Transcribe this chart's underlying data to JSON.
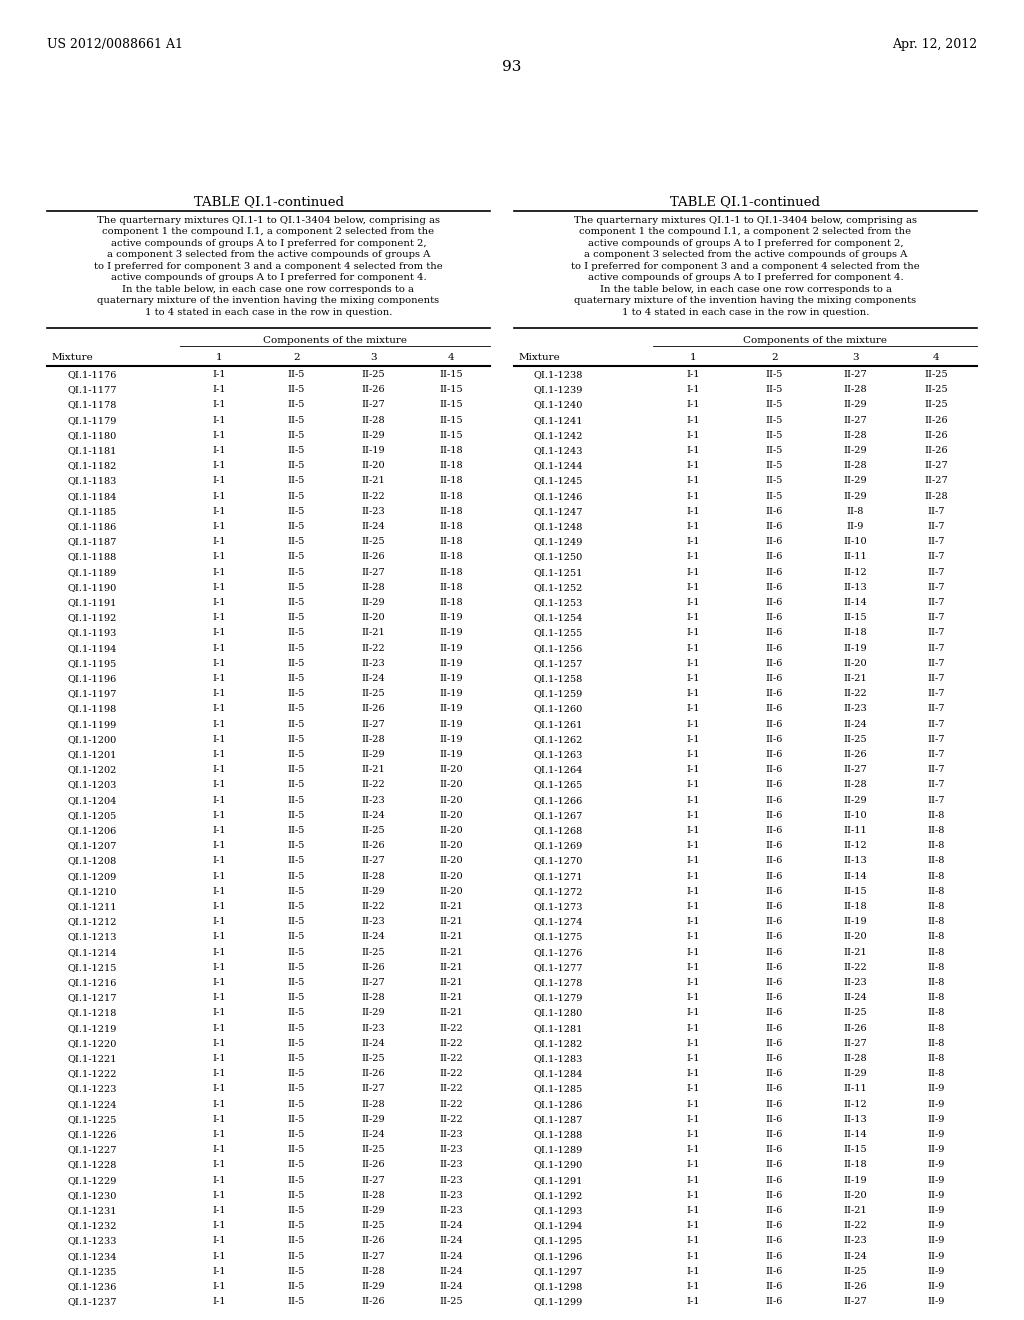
{
  "page_header_left": "US 2012/0088661 A1",
  "page_header_right": "Apr. 12, 2012",
  "page_number": "93",
  "table_title": "TABLE QI.1-continued",
  "table_description": "The quarternary mixtures QI.1-1 to QI.1-3404 below, comprising as\ncomponent 1 the compound I.1, a component 2 selected from the\nactive compounds of groups A to I preferred for component 2,\na component 3 selected from the active compounds of groups A\nto I preferred for component 3 and a component 4 selected from the\nactive compounds of groups A to I preferred for component 4.\nIn the table below, in each case one row corresponds to a\nquaternary mixture of the invention having the mixing components\n1 to 4 stated in each case in the row in question.",
  "col_header_span": "Components of the mixture",
  "col_headers": [
    "Mixture",
    "1",
    "2",
    "3",
    "4"
  ],
  "left_data": [
    [
      "QI.1-1176",
      "I-1",
      "II-5",
      "II-25",
      "II-15"
    ],
    [
      "QI.1-1177",
      "I-1",
      "II-5",
      "II-26",
      "II-15"
    ],
    [
      "QI.1-1178",
      "I-1",
      "II-5",
      "II-27",
      "II-15"
    ],
    [
      "QI.1-1179",
      "I-1",
      "II-5",
      "II-28",
      "II-15"
    ],
    [
      "QI.1-1180",
      "I-1",
      "II-5",
      "II-29",
      "II-15"
    ],
    [
      "QI.1-1181",
      "I-1",
      "II-5",
      "II-19",
      "II-18"
    ],
    [
      "QI.1-1182",
      "I-1",
      "II-5",
      "II-20",
      "II-18"
    ],
    [
      "QI.1-1183",
      "I-1",
      "II-5",
      "II-21",
      "II-18"
    ],
    [
      "QI.1-1184",
      "I-1",
      "II-5",
      "II-22",
      "II-18"
    ],
    [
      "QI.1-1185",
      "I-1",
      "II-5",
      "II-23",
      "II-18"
    ],
    [
      "QI.1-1186",
      "I-1",
      "II-5",
      "II-24",
      "II-18"
    ],
    [
      "QI.1-1187",
      "I-1",
      "II-5",
      "II-25",
      "II-18"
    ],
    [
      "QI.1-1188",
      "I-1",
      "II-5",
      "II-26",
      "II-18"
    ],
    [
      "QI.1-1189",
      "I-1",
      "II-5",
      "II-27",
      "II-18"
    ],
    [
      "QI.1-1190",
      "I-1",
      "II-5",
      "II-28",
      "II-18"
    ],
    [
      "QI.1-1191",
      "I-1",
      "II-5",
      "II-29",
      "II-18"
    ],
    [
      "QI.1-1192",
      "I-1",
      "II-5",
      "II-20",
      "II-19"
    ],
    [
      "QI.1-1193",
      "I-1",
      "II-5",
      "II-21",
      "II-19"
    ],
    [
      "QI.1-1194",
      "I-1",
      "II-5",
      "II-22",
      "II-19"
    ],
    [
      "QI.1-1195",
      "I-1",
      "II-5",
      "II-23",
      "II-19"
    ],
    [
      "QI.1-1196",
      "I-1",
      "II-5",
      "II-24",
      "II-19"
    ],
    [
      "QI.1-1197",
      "I-1",
      "II-5",
      "II-25",
      "II-19"
    ],
    [
      "QI.1-1198",
      "I-1",
      "II-5",
      "II-26",
      "II-19"
    ],
    [
      "QI.1-1199",
      "I-1",
      "II-5",
      "II-27",
      "II-19"
    ],
    [
      "QI.1-1200",
      "I-1",
      "II-5",
      "II-28",
      "II-19"
    ],
    [
      "QI.1-1201",
      "I-1",
      "II-5",
      "II-29",
      "II-19"
    ],
    [
      "QI.1-1202",
      "I-1",
      "II-5",
      "II-21",
      "II-20"
    ],
    [
      "QI.1-1203",
      "I-1",
      "II-5",
      "II-22",
      "II-20"
    ],
    [
      "QI.1-1204",
      "I-1",
      "II-5",
      "II-23",
      "II-20"
    ],
    [
      "QI.1-1205",
      "I-1",
      "II-5",
      "II-24",
      "II-20"
    ],
    [
      "QI.1-1206",
      "I-1",
      "II-5",
      "II-25",
      "II-20"
    ],
    [
      "QI.1-1207",
      "I-1",
      "II-5",
      "II-26",
      "II-20"
    ],
    [
      "QI.1-1208",
      "I-1",
      "II-5",
      "II-27",
      "II-20"
    ],
    [
      "QI.1-1209",
      "I-1",
      "II-5",
      "II-28",
      "II-20"
    ],
    [
      "QI.1-1210",
      "I-1",
      "II-5",
      "II-29",
      "II-20"
    ],
    [
      "QI.1-1211",
      "I-1",
      "II-5",
      "II-22",
      "II-21"
    ],
    [
      "QI.1-1212",
      "I-1",
      "II-5",
      "II-23",
      "II-21"
    ],
    [
      "QI.1-1213",
      "I-1",
      "II-5",
      "II-24",
      "II-21"
    ],
    [
      "QI.1-1214",
      "I-1",
      "II-5",
      "II-25",
      "II-21"
    ],
    [
      "QI.1-1215",
      "I-1",
      "II-5",
      "II-26",
      "II-21"
    ],
    [
      "QI.1-1216",
      "I-1",
      "II-5",
      "II-27",
      "II-21"
    ],
    [
      "QI.1-1217",
      "I-1",
      "II-5",
      "II-28",
      "II-21"
    ],
    [
      "QI.1-1218",
      "I-1",
      "II-5",
      "II-29",
      "II-21"
    ],
    [
      "QI.1-1219",
      "I-1",
      "II-5",
      "II-23",
      "II-22"
    ],
    [
      "QI.1-1220",
      "I-1",
      "II-5",
      "II-24",
      "II-22"
    ],
    [
      "QI.1-1221",
      "I-1",
      "II-5",
      "II-25",
      "II-22"
    ],
    [
      "QI.1-1222",
      "I-1",
      "II-5",
      "II-26",
      "II-22"
    ],
    [
      "QI.1-1223",
      "I-1",
      "II-5",
      "II-27",
      "II-22"
    ],
    [
      "QI.1-1224",
      "I-1",
      "II-5",
      "II-28",
      "II-22"
    ],
    [
      "QI.1-1225",
      "I-1",
      "II-5",
      "II-29",
      "II-22"
    ],
    [
      "QI.1-1226",
      "I-1",
      "II-5",
      "II-24",
      "II-23"
    ],
    [
      "QI.1-1227",
      "I-1",
      "II-5",
      "II-25",
      "II-23"
    ],
    [
      "QI.1-1228",
      "I-1",
      "II-5",
      "II-26",
      "II-23"
    ],
    [
      "QI.1-1229",
      "I-1",
      "II-5",
      "II-27",
      "II-23"
    ],
    [
      "QI.1-1230",
      "I-1",
      "II-5",
      "II-28",
      "II-23"
    ],
    [
      "QI.1-1231",
      "I-1",
      "II-5",
      "II-29",
      "II-23"
    ],
    [
      "QI.1-1232",
      "I-1",
      "II-5",
      "II-25",
      "II-24"
    ],
    [
      "QI.1-1233",
      "I-1",
      "II-5",
      "II-26",
      "II-24"
    ],
    [
      "QI.1-1234",
      "I-1",
      "II-5",
      "II-27",
      "II-24"
    ],
    [
      "QI.1-1235",
      "I-1",
      "II-5",
      "II-28",
      "II-24"
    ],
    [
      "QI.1-1236",
      "I-1",
      "II-5",
      "II-29",
      "II-24"
    ],
    [
      "QI.1-1237",
      "I-1",
      "II-5",
      "II-26",
      "II-25"
    ]
  ],
  "right_data": [
    [
      "QI.1-1238",
      "I-1",
      "II-5",
      "II-27",
      "II-25"
    ],
    [
      "QI.1-1239",
      "I-1",
      "II-5",
      "II-28",
      "II-25"
    ],
    [
      "QI.1-1240",
      "I-1",
      "II-5",
      "II-29",
      "II-25"
    ],
    [
      "QI.1-1241",
      "I-1",
      "II-5",
      "II-27",
      "II-26"
    ],
    [
      "QI.1-1242",
      "I-1",
      "II-5",
      "II-28",
      "II-26"
    ],
    [
      "QI.1-1243",
      "I-1",
      "II-5",
      "II-29",
      "II-26"
    ],
    [
      "QI.1-1244",
      "I-1",
      "II-5",
      "II-28",
      "II-27"
    ],
    [
      "QI.1-1245",
      "I-1",
      "II-5",
      "II-29",
      "II-27"
    ],
    [
      "QI.1-1246",
      "I-1",
      "II-5",
      "II-29",
      "II-28"
    ],
    [
      "QI.1-1247",
      "I-1",
      "II-6",
      "II-8",
      "II-7"
    ],
    [
      "QI.1-1248",
      "I-1",
      "II-6",
      "II-9",
      "II-7"
    ],
    [
      "QI.1-1249",
      "I-1",
      "II-6",
      "II-10",
      "II-7"
    ],
    [
      "QI.1-1250",
      "I-1",
      "II-6",
      "II-11",
      "II-7"
    ],
    [
      "QI.1-1251",
      "I-1",
      "II-6",
      "II-12",
      "II-7"
    ],
    [
      "QI.1-1252",
      "I-1",
      "II-6",
      "II-13",
      "II-7"
    ],
    [
      "QI.1-1253",
      "I-1",
      "II-6",
      "II-14",
      "II-7"
    ],
    [
      "QI.1-1254",
      "I-1",
      "II-6",
      "II-15",
      "II-7"
    ],
    [
      "QI.1-1255",
      "I-1",
      "II-6",
      "II-18",
      "II-7"
    ],
    [
      "QI.1-1256",
      "I-1",
      "II-6",
      "II-19",
      "II-7"
    ],
    [
      "QI.1-1257",
      "I-1",
      "II-6",
      "II-20",
      "II-7"
    ],
    [
      "QI.1-1258",
      "I-1",
      "II-6",
      "II-21",
      "II-7"
    ],
    [
      "QI.1-1259",
      "I-1",
      "II-6",
      "II-22",
      "II-7"
    ],
    [
      "QI.1-1260",
      "I-1",
      "II-6",
      "II-23",
      "II-7"
    ],
    [
      "QI.1-1261",
      "I-1",
      "II-6",
      "II-24",
      "II-7"
    ],
    [
      "QI.1-1262",
      "I-1",
      "II-6",
      "II-25",
      "II-7"
    ],
    [
      "QI.1-1263",
      "I-1",
      "II-6",
      "II-26",
      "II-7"
    ],
    [
      "QI.1-1264",
      "I-1",
      "II-6",
      "II-27",
      "II-7"
    ],
    [
      "QI.1-1265",
      "I-1",
      "II-6",
      "II-28",
      "II-7"
    ],
    [
      "QI.1-1266",
      "I-1",
      "II-6",
      "II-29",
      "II-7"
    ],
    [
      "QI.1-1267",
      "I-1",
      "II-6",
      "II-10",
      "II-8"
    ],
    [
      "QI.1-1268",
      "I-1",
      "II-6",
      "II-11",
      "II-8"
    ],
    [
      "QI.1-1269",
      "I-1",
      "II-6",
      "II-12",
      "II-8"
    ],
    [
      "QI.1-1270",
      "I-1",
      "II-6",
      "II-13",
      "II-8"
    ],
    [
      "QI.1-1271",
      "I-1",
      "II-6",
      "II-14",
      "II-8"
    ],
    [
      "QI.1-1272",
      "I-1",
      "II-6",
      "II-15",
      "II-8"
    ],
    [
      "QI.1-1273",
      "I-1",
      "II-6",
      "II-18",
      "II-8"
    ],
    [
      "QI.1-1274",
      "I-1",
      "II-6",
      "II-19",
      "II-8"
    ],
    [
      "QI.1-1275",
      "I-1",
      "II-6",
      "II-20",
      "II-8"
    ],
    [
      "QI.1-1276",
      "I-1",
      "II-6",
      "II-21",
      "II-8"
    ],
    [
      "QI.1-1277",
      "I-1",
      "II-6",
      "II-22",
      "II-8"
    ],
    [
      "QI.1-1278",
      "I-1",
      "II-6",
      "II-23",
      "II-8"
    ],
    [
      "QI.1-1279",
      "I-1",
      "II-6",
      "II-24",
      "II-8"
    ],
    [
      "QI.1-1280",
      "I-1",
      "II-6",
      "II-25",
      "II-8"
    ],
    [
      "QI.1-1281",
      "I-1",
      "II-6",
      "II-26",
      "II-8"
    ],
    [
      "QI.1-1282",
      "I-1",
      "II-6",
      "II-27",
      "II-8"
    ],
    [
      "QI.1-1283",
      "I-1",
      "II-6",
      "II-28",
      "II-8"
    ],
    [
      "QI.1-1284",
      "I-1",
      "II-6",
      "II-29",
      "II-8"
    ],
    [
      "QI.1-1285",
      "I-1",
      "II-6",
      "II-11",
      "II-9"
    ],
    [
      "QI.1-1286",
      "I-1",
      "II-6",
      "II-12",
      "II-9"
    ],
    [
      "QI.1-1287",
      "I-1",
      "II-6",
      "II-13",
      "II-9"
    ],
    [
      "QI.1-1288",
      "I-1",
      "II-6",
      "II-14",
      "II-9"
    ],
    [
      "QI.1-1289",
      "I-1",
      "II-6",
      "II-15",
      "II-9"
    ],
    [
      "QI.1-1290",
      "I-1",
      "II-6",
      "II-18",
      "II-9"
    ],
    [
      "QI.1-1291",
      "I-1",
      "II-6",
      "II-19",
      "II-9"
    ],
    [
      "QI.1-1292",
      "I-1",
      "II-6",
      "II-20",
      "II-9"
    ],
    [
      "QI.1-1293",
      "I-1",
      "II-6",
      "II-21",
      "II-9"
    ],
    [
      "QI.1-1294",
      "I-1",
      "II-6",
      "II-22",
      "II-9"
    ],
    [
      "QI.1-1295",
      "I-1",
      "II-6",
      "II-23",
      "II-9"
    ],
    [
      "QI.1-1296",
      "I-1",
      "II-6",
      "II-24",
      "II-9"
    ],
    [
      "QI.1-1297",
      "I-1",
      "II-6",
      "II-25",
      "II-9"
    ],
    [
      "QI.1-1298",
      "I-1",
      "II-6",
      "II-26",
      "II-9"
    ],
    [
      "QI.1-1299",
      "I-1",
      "II-6",
      "II-27",
      "II-9"
    ]
  ],
  "bg_color": "#ffffff",
  "text_color": "#000000",
  "font_size_data": 7.0,
  "font_size_title": 9.5,
  "font_size_page": 9.0,
  "font_size_desc": 7.2,
  "font_size_col_header": 7.5
}
